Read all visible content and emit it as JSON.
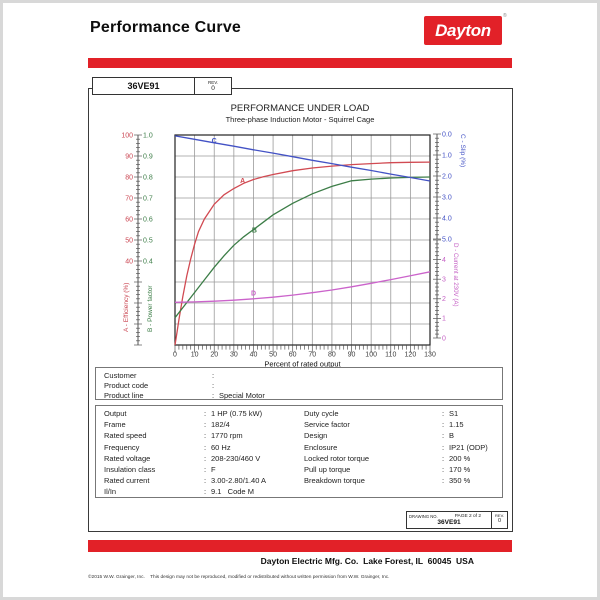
{
  "sep": ":",
  "header": {
    "title": "Performance Curve",
    "brand": "Dayton",
    "registered": "®"
  },
  "model_box": {
    "model": "36VE91",
    "rev_label": "REV.",
    "rev_value": "0"
  },
  "chart_data": {
    "type": "line",
    "title": "PERFORMANCE UNDER LOAD",
    "subtitle": "Three-phase Induction Motor - Squirrel Cage",
    "xlabel": "Percent of rated output",
    "x_range": [
      0,
      130
    ],
    "x_ticks": [
      0,
      10,
      20,
      30,
      40,
      50,
      60,
      70,
      80,
      90,
      100,
      110,
      120,
      130
    ],
    "grid": true,
    "axes": [
      {
        "id": "efficiency",
        "label": "A - Efficiency (%)",
        "color": "#cb4854",
        "side": "left",
        "range": [
          0,
          100
        ],
        "tick_labels": [
          "100",
          "90",
          "80",
          "70",
          "60",
          "50",
          "40"
        ]
      },
      {
        "id": "power_factor",
        "label": "B - Power factor",
        "color": "#3c7d47",
        "side": "left",
        "range": [
          0,
          1
        ],
        "tick_labels": [
          "1.0",
          "0.9",
          "0.8",
          "0.7",
          "0.6",
          "0.5",
          "0.4"
        ]
      },
      {
        "id": "slip",
        "label": "C - Slip (%)",
        "color": "#4352c5",
        "side": "right",
        "range": [
          0,
          5
        ],
        "tick_labels": [
          "0.0",
          "1.0",
          "2.0",
          "3.0",
          "4.0",
          "5.0"
        ]
      },
      {
        "id": "current",
        "label": "D - Current at 230V (A)",
        "color": "#c561c5",
        "side": "right",
        "range": [
          0,
          5
        ],
        "tick_labels": [
          "4",
          "3",
          "2",
          "1",
          "0"
        ]
      }
    ],
    "series": [
      {
        "name": "A",
        "axis": "efficiency",
        "color": "#d14a52",
        "label_at": [
          34.5,
          78
        ],
        "points": [
          [
            0,
            0
          ],
          [
            1,
            6
          ],
          [
            2,
            12
          ],
          [
            4,
            23
          ],
          [
            6,
            33
          ],
          [
            8,
            41
          ],
          [
            10,
            48
          ],
          [
            12,
            54
          ],
          [
            15,
            60
          ],
          [
            20,
            67
          ],
          [
            25,
            71.5
          ],
          [
            30,
            74.5
          ],
          [
            35,
            77
          ],
          [
            40,
            78.8
          ],
          [
            45,
            80.1
          ],
          [
            50,
            81.2
          ],
          [
            60,
            83
          ],
          [
            70,
            84.3
          ],
          [
            80,
            85.2
          ],
          [
            90,
            85.9
          ],
          [
            100,
            86.4
          ],
          [
            110,
            86.8
          ],
          [
            120,
            87
          ],
          [
            130,
            87.1
          ]
        ]
      },
      {
        "name": "B",
        "axis": "power_factor",
        "color": "#3c7d47",
        "label_at": [
          40.5,
          0.545
        ],
        "points": [
          [
            0,
            0.13
          ],
          [
            5,
            0.19
          ],
          [
            10,
            0.25
          ],
          [
            15,
            0.31
          ],
          [
            20,
            0.37
          ],
          [
            25,
            0.425
          ],
          [
            30,
            0.475
          ],
          [
            35,
            0.515
          ],
          [
            40,
            0.55
          ],
          [
            45,
            0.585
          ],
          [
            50,
            0.62
          ],
          [
            60,
            0.675
          ],
          [
            70,
            0.72
          ],
          [
            80,
            0.755
          ],
          [
            90,
            0.782
          ],
          [
            100,
            0.79
          ],
          [
            110,
            0.795
          ],
          [
            120,
            0.798
          ],
          [
            130,
            0.8
          ]
        ]
      },
      {
        "name": "C",
        "axis": "slip",
        "color": "#4352c5",
        "label_at": [
          20,
          0.33
        ],
        "points": [
          [
            0,
            0.09
          ],
          [
            10,
            0.25
          ],
          [
            20,
            0.42
          ],
          [
            30,
            0.58
          ],
          [
            40,
            0.75
          ],
          [
            50,
            0.91
          ],
          [
            60,
            1.08
          ],
          [
            70,
            1.25
          ],
          [
            80,
            1.41
          ],
          [
            90,
            1.58
          ],
          [
            100,
            1.74
          ],
          [
            110,
            1.91
          ],
          [
            120,
            2.07
          ],
          [
            130,
            2.24
          ]
        ]
      },
      {
        "name": "D",
        "axis": "current",
        "color": "#cb63cb",
        "label_at": [
          40,
          2.27
        ],
        "points": [
          [
            0,
            1.82
          ],
          [
            10,
            1.84
          ],
          [
            20,
            1.88
          ],
          [
            30,
            1.93
          ],
          [
            40,
            2.0
          ],
          [
            50,
            2.08
          ],
          [
            60,
            2.19
          ],
          [
            70,
            2.31
          ],
          [
            80,
            2.45
          ],
          [
            90,
            2.61
          ],
          [
            100,
            2.79
          ],
          [
            110,
            2.98
          ],
          [
            120,
            3.18
          ],
          [
            130,
            3.38
          ]
        ]
      }
    ]
  },
  "customer": {
    "rows": [
      [
        "Customer",
        ""
      ],
      [
        "Product code",
        ""
      ],
      [
        "Product line",
        "Special Motor"
      ]
    ]
  },
  "specs": {
    "left": [
      [
        "Output",
        "1 HP (0.75 kW)"
      ],
      [
        "Frame",
        "182/4"
      ],
      [
        "Rated speed",
        "1770 rpm"
      ],
      [
        "Frequency",
        "60 Hz"
      ],
      [
        "Rated voltage",
        "208-230/460 V"
      ],
      [
        "Insulation class",
        "F"
      ],
      [
        "Rated current",
        "3.00-2.80/1.40 A"
      ],
      [
        "Il/In",
        "9.1   Code M"
      ]
    ],
    "right": [
      [
        "Duty cycle",
        "S1"
      ],
      [
        "Service factor",
        "1.15"
      ],
      [
        "Design",
        "B"
      ],
      [
        "Enclosure",
        "IP21 (ODP)"
      ],
      [
        "Locked rotor torque",
        "200 %"
      ],
      [
        "Pull up torque",
        "170 %"
      ],
      [
        "Breakdown torque",
        "350 %"
      ]
    ]
  },
  "drawing_box": {
    "drawing_no_label": "DRAWING NO.",
    "page_label": "PAGE 2 of 2",
    "number": "36VE91",
    "rev_label": "REV.",
    "rev_value": "0"
  },
  "footer": {
    "company_line": "Dayton Electric Mfg. Co.  Lake Forest, IL  60045  USA",
    "copyright": "©2015 W.W. Grainger, Inc.    This design may not be reproduced, modified or redistributed without written permission from W.W. Grainger, Inc."
  },
  "colors": {
    "brand_red": "#e22128"
  }
}
